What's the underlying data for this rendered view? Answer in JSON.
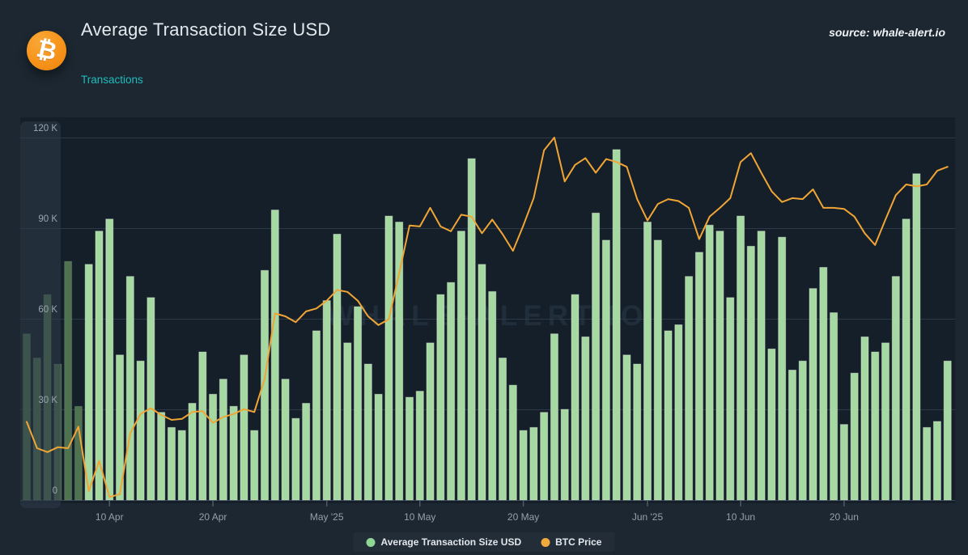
{
  "header": {
    "title": "Average Transaction Size USD",
    "nav_link": "Transactions",
    "source_label": "source: whale-alert.io",
    "logo_glyph": "₿"
  },
  "watermark": "WHALE-ALERT.IO",
  "legend": [
    {
      "label": "Average Transaction Size USD",
      "color": "#90d795"
    },
    {
      "label": "BTC Price",
      "color": "#f2a93b"
    }
  ],
  "colors": {
    "page_bg": "#1c2731",
    "plot_bg": "#151f29",
    "bar_fill": "#a6d8a2",
    "bar_stroke": "rgba(235,250,235,0.4)",
    "bar_dim_fill": "#4f7350",
    "line_color": "#f0a535",
    "grid_color": "#2d3946",
    "zero_line_color": "#3a4653",
    "axis_label_color": "#93a0ac",
    "tick_color": "#4e5a66",
    "panel_fill": "rgba(46,59,73,0.55)",
    "accent_teal": "#1fbcbc",
    "bitcoin_orange": "#f7931a",
    "dimmed_bar_indices": [
      0,
      1,
      2,
      3,
      4,
      5
    ]
  },
  "chart_data": {
    "type": "mixed",
    "title": "Average Transaction Size USD",
    "grid": "horizontal",
    "legend_position": "bottom",
    "y_axis": {
      "unit": "USD",
      "range": [
        0,
        120000
      ],
      "ticks": [
        {
          "value": 0,
          "label": "0"
        },
        {
          "value": 30000,
          "label": "30 K"
        },
        {
          "value": 60000,
          "label": "60 K"
        },
        {
          "value": 90000,
          "label": "90 K"
        },
        {
          "value": 120000,
          "label": "120 K"
        }
      ]
    },
    "line_axis": {
      "note": "hidden axis for BTC Price in USD",
      "min": 74800,
      "max": 111900
    },
    "x_ticks": [
      {
        "index": 8,
        "label": "10 Apr"
      },
      {
        "index": 18,
        "label": "20 Apr"
      },
      {
        "index": 29,
        "label": "May '25"
      },
      {
        "index": 38,
        "label": "10 May"
      },
      {
        "index": 48,
        "label": "20 May"
      },
      {
        "index": 60,
        "label": "Jun '25"
      },
      {
        "index": 69,
        "label": "10 Jun"
      },
      {
        "index": 79,
        "label": "20 Jun"
      }
    ],
    "categories": [
      "2025-04-02",
      "2025-04-03",
      "2025-04-04",
      "2025-04-05",
      "2025-04-06",
      "2025-04-07",
      "2025-04-08",
      "2025-04-09",
      "2025-04-10",
      "2025-04-11",
      "2025-04-12",
      "2025-04-13",
      "2025-04-14",
      "2025-04-15",
      "2025-04-16",
      "2025-04-17",
      "2025-04-18",
      "2025-04-19",
      "2025-04-20",
      "2025-04-21",
      "2025-04-22",
      "2025-04-23",
      "2025-04-24",
      "2025-04-25",
      "2025-04-26",
      "2025-04-27",
      "2025-04-28",
      "2025-04-29",
      "2025-04-30",
      "2025-05-01",
      "2025-05-02",
      "2025-05-03",
      "2025-05-04",
      "2025-05-05",
      "2025-05-06",
      "2025-05-07",
      "2025-05-08",
      "2025-05-09",
      "2025-05-10",
      "2025-05-11",
      "2025-05-12",
      "2025-05-13",
      "2025-05-14",
      "2025-05-15",
      "2025-05-16",
      "2025-05-17",
      "2025-05-18",
      "2025-05-19",
      "2025-05-20",
      "2025-05-21",
      "2025-05-22",
      "2025-05-23",
      "2025-05-24",
      "2025-05-25",
      "2025-05-26",
      "2025-05-27",
      "2025-05-28",
      "2025-05-29",
      "2025-05-30",
      "2025-05-31",
      "2025-06-01",
      "2025-06-02",
      "2025-06-03",
      "2025-06-04",
      "2025-06-05",
      "2025-06-06",
      "2025-06-07",
      "2025-06-08",
      "2025-06-09",
      "2025-06-10",
      "2025-06-11",
      "2025-06-12",
      "2025-06-13",
      "2025-06-14",
      "2025-06-15",
      "2025-06-16",
      "2025-06-17",
      "2025-06-18",
      "2025-06-19",
      "2025-06-20",
      "2025-06-21",
      "2025-06-22",
      "2025-06-23",
      "2025-06-24",
      "2025-06-25",
      "2025-06-26",
      "2025-06-27",
      "2025-06-28",
      "2025-06-29",
      "2025-06-30"
    ],
    "series": [
      {
        "name": "Average Transaction Size USD",
        "type": "bar",
        "unit": "USD",
        "values": [
          55000,
          47000,
          68000,
          45000,
          79000,
          31000,
          78000,
          89000,
          93000,
          48000,
          74000,
          46000,
          67000,
          29000,
          24000,
          23000,
          32000,
          49000,
          35000,
          40000,
          31000,
          48000,
          23000,
          76000,
          96000,
          40000,
          27000,
          32000,
          56000,
          66000,
          88000,
          52000,
          64000,
          45000,
          35000,
          94000,
          92000,
          34000,
          36000,
          52000,
          68000,
          72000,
          89000,
          113000,
          78000,
          69000,
          47000,
          38000,
          23000,
          24000,
          29000,
          55000,
          30000,
          68000,
          54000,
          95000,
          86000,
          116000,
          48000,
          45000,
          92000,
          86000,
          56000,
          58000,
          74000,
          82000,
          91000,
          89000,
          67000,
          94000,
          84000,
          89000,
          50000,
          87000,
          43000,
          46000,
          70000,
          77000,
          62000,
          25000,
          42000,
          54000,
          49000,
          52000,
          74000,
          93000,
          108000,
          24000,
          26000,
          46000
        ]
      },
      {
        "name": "BTC Price",
        "type": "line",
        "unit": "USD",
        "values": [
          82800,
          80100,
          79700,
          80200,
          80100,
          82300,
          75700,
          78800,
          75100,
          75400,
          81600,
          83600,
          84200,
          83500,
          83000,
          83100,
          83800,
          83900,
          82700,
          83300,
          83600,
          84100,
          83800,
          87200,
          93900,
          93600,
          93000,
          94100,
          94400,
          95200,
          96300,
          96100,
          95200,
          93600,
          92700,
          93300,
          98000,
          102900,
          102800,
          104700,
          102800,
          102300,
          104000,
          103800,
          102100,
          103500,
          102000,
          100300,
          102900,
          105700,
          110600,
          111900,
          107400,
          109100,
          109800,
          108300,
          109700,
          109400,
          108900,
          105600,
          103400,
          105100,
          105600,
          105400,
          104700,
          101500,
          103800,
          104700,
          105700,
          109400,
          110300,
          108300,
          106400,
          105300,
          105700,
          105600,
          106600,
          104700,
          104700,
          104600,
          103800,
          102100,
          100900,
          103500,
          106000,
          107100,
          106900,
          107100,
          108500,
          108900
        ]
      }
    ]
  }
}
